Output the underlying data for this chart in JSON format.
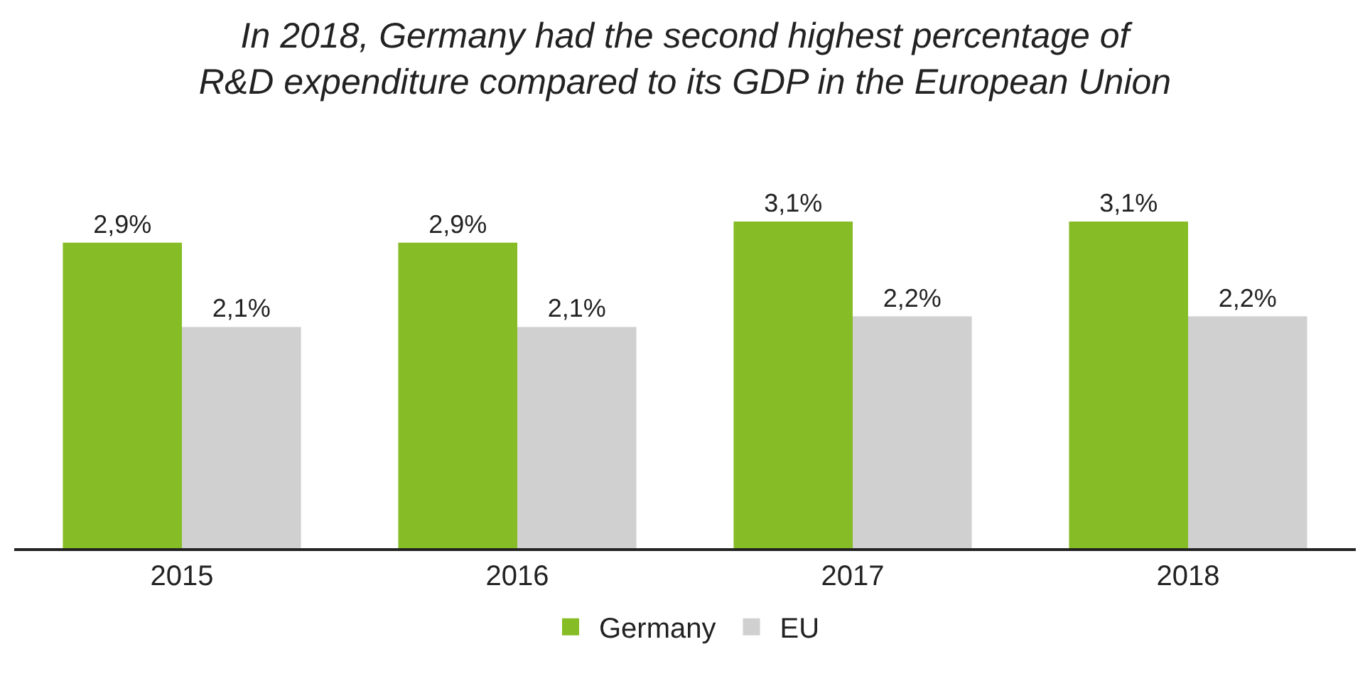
{
  "chart_data": {
    "type": "bar",
    "title": "In 2018, Germany had the second highest percentage of R&D expenditure compared to its GDP in the European Union",
    "categories": [
      "2015",
      "2016",
      "2017",
      "2018"
    ],
    "series": [
      {
        "name": "Germany",
        "color": "#86bc25",
        "values": [
          2.9,
          2.9,
          3.1,
          3.1
        ],
        "value_labels": [
          "2,9%",
          "2,9%",
          "3,1%",
          "3,1%"
        ]
      },
      {
        "name": "EU",
        "color": "#d0d0d0",
        "values": [
          2.1,
          2.1,
          2.2,
          2.2
        ],
        "value_labels": [
          "2,1%",
          "2,1%",
          "2,2%",
          "2,2%"
        ]
      }
    ],
    "legend": "bottom",
    "grid": false
  }
}
